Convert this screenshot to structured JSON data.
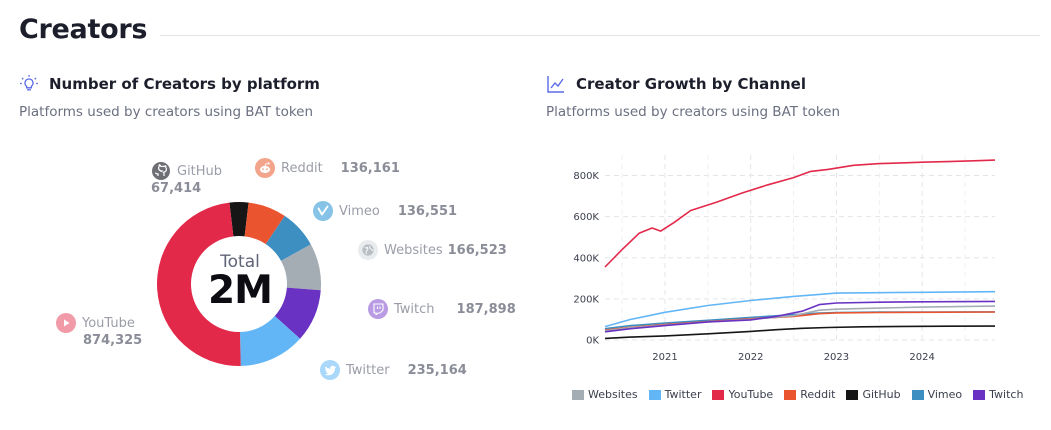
{
  "page": {
    "title": "Creators"
  },
  "donut_section": {
    "title": "Number of Creators by platform",
    "subtitle": "Platforms used by creators using BAT token",
    "center_label": "Total",
    "center_value": "2M"
  },
  "line_section": {
    "title": "Creator Growth by Channel",
    "subtitle": "Platforms used by creators using BAT token"
  },
  "colors": {
    "youtube": "#e3294a",
    "twitter": "#63b6f6",
    "twitch": "#6932c2",
    "websites": "#a5adb4",
    "vimeo": "#3d8fc2",
    "reddit": "#ea5530",
    "github": "#161616"
  },
  "chart_data": [
    {
      "type": "pie",
      "variant": "donut",
      "title": "Number of Creators by platform",
      "slices": [
        {
          "name": "YouTube",
          "value": 874325,
          "label": "874,325",
          "color": "#e3294a",
          "icon": "play-icon"
        },
        {
          "name": "Twitter",
          "value": 235164,
          "label": "235,164",
          "color": "#63b6f6",
          "icon": "bird-icon"
        },
        {
          "name": "Twitch",
          "value": 187898,
          "label": "187,898",
          "color": "#6932c2",
          "icon": "twitch-icon"
        },
        {
          "name": "Websites",
          "value": 166523,
          "label": "166,523",
          "color": "#a5adb4",
          "icon": "globe-icon"
        },
        {
          "name": "Vimeo",
          "value": 136551,
          "label": "136,551",
          "color": "#3d8fc2",
          "icon": "vimeo-icon"
        },
        {
          "name": "Reddit",
          "value": 136161,
          "label": "136,161",
          "color": "#ea5530",
          "icon": "reddit-icon"
        },
        {
          "name": "GitHub",
          "value": 67414,
          "label": "67,414",
          "color": "#161616",
          "icon": "github-icon"
        }
      ]
    },
    {
      "type": "line",
      "title": "Creator Growth by Channel",
      "xlabel": "",
      "ylabel": "",
      "xlim": [
        2020.3,
        2024.85
      ],
      "ylim": [
        0,
        900000
      ],
      "x_ticks": [
        2021,
        2022,
        2023,
        2024
      ],
      "x_tick_labels": [
        "2021",
        "2022",
        "2023",
        "2024"
      ],
      "y_ticks": [
        0,
        200000,
        400000,
        600000,
        800000
      ],
      "y_tick_labels": [
        "0K",
        "200K",
        "400K",
        "600K",
        "800K"
      ],
      "grid": true,
      "legend_position": "bottom",
      "series": [
        {
          "name": "Websites",
          "color": "#a5adb4",
          "x": [
            2020.3,
            2020.6,
            2021.0,
            2021.5,
            2022.0,
            2022.5,
            2022.8,
            2023.0,
            2023.5,
            2024.0,
            2024.85
          ],
          "values": [
            45000,
            60000,
            72000,
            88000,
            100000,
            118000,
            145000,
            150000,
            155000,
            160000,
            165000
          ]
        },
        {
          "name": "Twitter",
          "color": "#63b6f6",
          "x": [
            2020.3,
            2020.6,
            2021.0,
            2021.5,
            2022.0,
            2022.5,
            2022.8,
            2023.0,
            2023.5,
            2024.0,
            2024.85
          ],
          "values": [
            65000,
            100000,
            135000,
            168000,
            192000,
            212000,
            222000,
            228000,
            230000,
            232000,
            235000
          ]
        },
        {
          "name": "YouTube",
          "color": "#e3294a",
          "x": [
            2020.3,
            2020.5,
            2020.7,
            2020.85,
            2020.95,
            2021.1,
            2021.3,
            2021.6,
            2021.9,
            2022.2,
            2022.5,
            2022.7,
            2022.9,
            2023.2,
            2023.5,
            2023.8,
            2024.0,
            2024.3,
            2024.6,
            2024.85
          ],
          "values": [
            355000,
            440000,
            520000,
            545000,
            530000,
            570000,
            630000,
            670000,
            715000,
            755000,
            790000,
            820000,
            830000,
            850000,
            858000,
            862000,
            865000,
            868000,
            872000,
            875000
          ]
        },
        {
          "name": "Reddit",
          "color": "#ea5530",
          "x": [
            2020.3,
            2020.6,
            2021.0,
            2021.5,
            2022.0,
            2022.5,
            2022.8,
            2023.0,
            2023.5,
            2024.0,
            2024.85
          ],
          "values": [
            48000,
            62000,
            75000,
            90000,
            103000,
            115000,
            128000,
            132000,
            134000,
            135000,
            136000
          ]
        },
        {
          "name": "GitHub",
          "color": "#161616",
          "x": [
            2020.3,
            2020.6,
            2021.0,
            2021.5,
            2022.0,
            2022.3,
            2022.6,
            2022.9,
            2023.3,
            2023.8,
            2024.3,
            2024.85
          ],
          "values": [
            8000,
            14000,
            20000,
            30000,
            42000,
            50000,
            57000,
            61000,
            64000,
            66000,
            67000,
            67500
          ]
        },
        {
          "name": "Vimeo",
          "color": "#3d8fc2",
          "x": [
            2020.3,
            2020.6,
            2021.0,
            2021.5,
            2022.0,
            2022.5,
            2022.8,
            2023.0,
            2023.5,
            2024.0,
            2024.85
          ],
          "values": [
            55000,
            70000,
            82000,
            96000,
            110000,
            123000,
            131000,
            134000,
            135500,
            136000,
            136500
          ]
        },
        {
          "name": "Twitch",
          "color": "#6932c2",
          "x": [
            2020.3,
            2020.6,
            2021.0,
            2021.5,
            2022.0,
            2022.3,
            2022.6,
            2022.8,
            2023.0,
            2023.5,
            2024.0,
            2024.85
          ],
          "values": [
            40000,
            55000,
            70000,
            88000,
            98000,
            115000,
            140000,
            172000,
            180000,
            184000,
            186000,
            188000
          ]
        }
      ]
    }
  ]
}
